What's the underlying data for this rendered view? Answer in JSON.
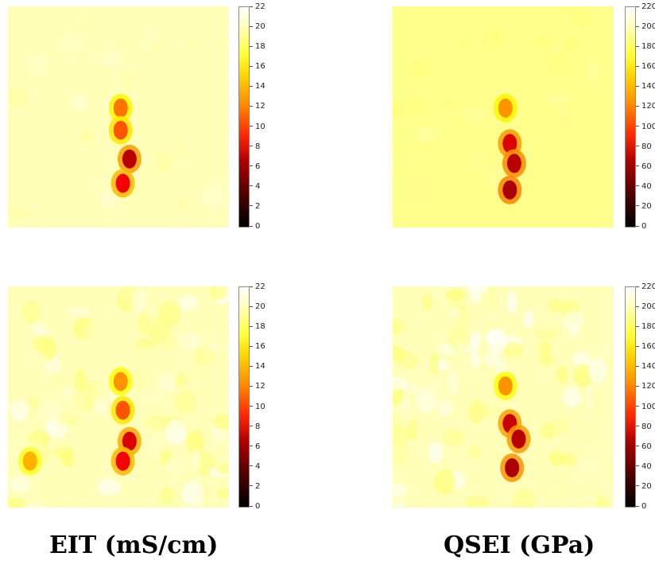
{
  "captions": {
    "left": "EIT (mS/cm)",
    "right": "QSEI (GPa)"
  },
  "chart_data": [
    {
      "type": "heatmap",
      "name_text": "",
      "colormap": "hot",
      "clim": [
        0,
        22
      ],
      "colorbar_ticks": [
        "0",
        "2",
        "4",
        "6",
        "8",
        "10",
        "12",
        "14",
        "16",
        "18",
        "20",
        "22"
      ],
      "background_value": 20.5,
      "blobs": [
        {
          "x": 0.51,
          "y": 0.46,
          "value": 12
        },
        {
          "x": 0.51,
          "y": 0.56,
          "value": 11
        },
        {
          "x": 0.55,
          "y": 0.69,
          "value": 6
        },
        {
          "x": 0.52,
          "y": 0.8,
          "value": 8
        }
      ]
    },
    {
      "type": "heatmap",
      "colormap": "hot",
      "clim": [
        0,
        220
      ],
      "colorbar_ticks": [
        "0",
        "20",
        "40",
        "60",
        "80",
        "100",
        "120",
        "140",
        "160",
        "180",
        "200",
        "220"
      ],
      "background_value": 195,
      "blobs": [
        {
          "x": 0.51,
          "y": 0.46,
          "value": 130
        },
        {
          "x": 0.53,
          "y": 0.62,
          "value": 70
        },
        {
          "x": 0.55,
          "y": 0.71,
          "value": 60
        },
        {
          "x": 0.53,
          "y": 0.83,
          "value": 55
        }
      ]
    },
    {
      "type": "heatmap",
      "colormap": "hot",
      "clim": [
        0,
        22
      ],
      "colorbar_ticks": [
        "0",
        "2",
        "4",
        "6",
        "8",
        "10",
        "12",
        "14",
        "16",
        "18",
        "20",
        "22"
      ],
      "background_value": 20.5,
      "blobs": [
        {
          "x": 0.51,
          "y": 0.43,
          "value": 13
        },
        {
          "x": 0.52,
          "y": 0.56,
          "value": 11
        },
        {
          "x": 0.55,
          "y": 0.7,
          "value": 7
        },
        {
          "x": 0.52,
          "y": 0.79,
          "value": 8
        },
        {
          "x": 0.1,
          "y": 0.79,
          "value": 14
        }
      ]
    },
    {
      "type": "heatmap",
      "colormap": "hot",
      "clim": [
        0,
        220
      ],
      "colorbar_ticks": [
        "0",
        "20",
        "40",
        "60",
        "80",
        "100",
        "120",
        "140",
        "160",
        "180",
        "200",
        "220"
      ],
      "background_value": 205,
      "blobs": [
        {
          "x": 0.51,
          "y": 0.45,
          "value": 130
        },
        {
          "x": 0.53,
          "y": 0.62,
          "value": 65
        },
        {
          "x": 0.57,
          "y": 0.69,
          "value": 60
        },
        {
          "x": 0.54,
          "y": 0.82,
          "value": 55
        }
      ]
    }
  ]
}
